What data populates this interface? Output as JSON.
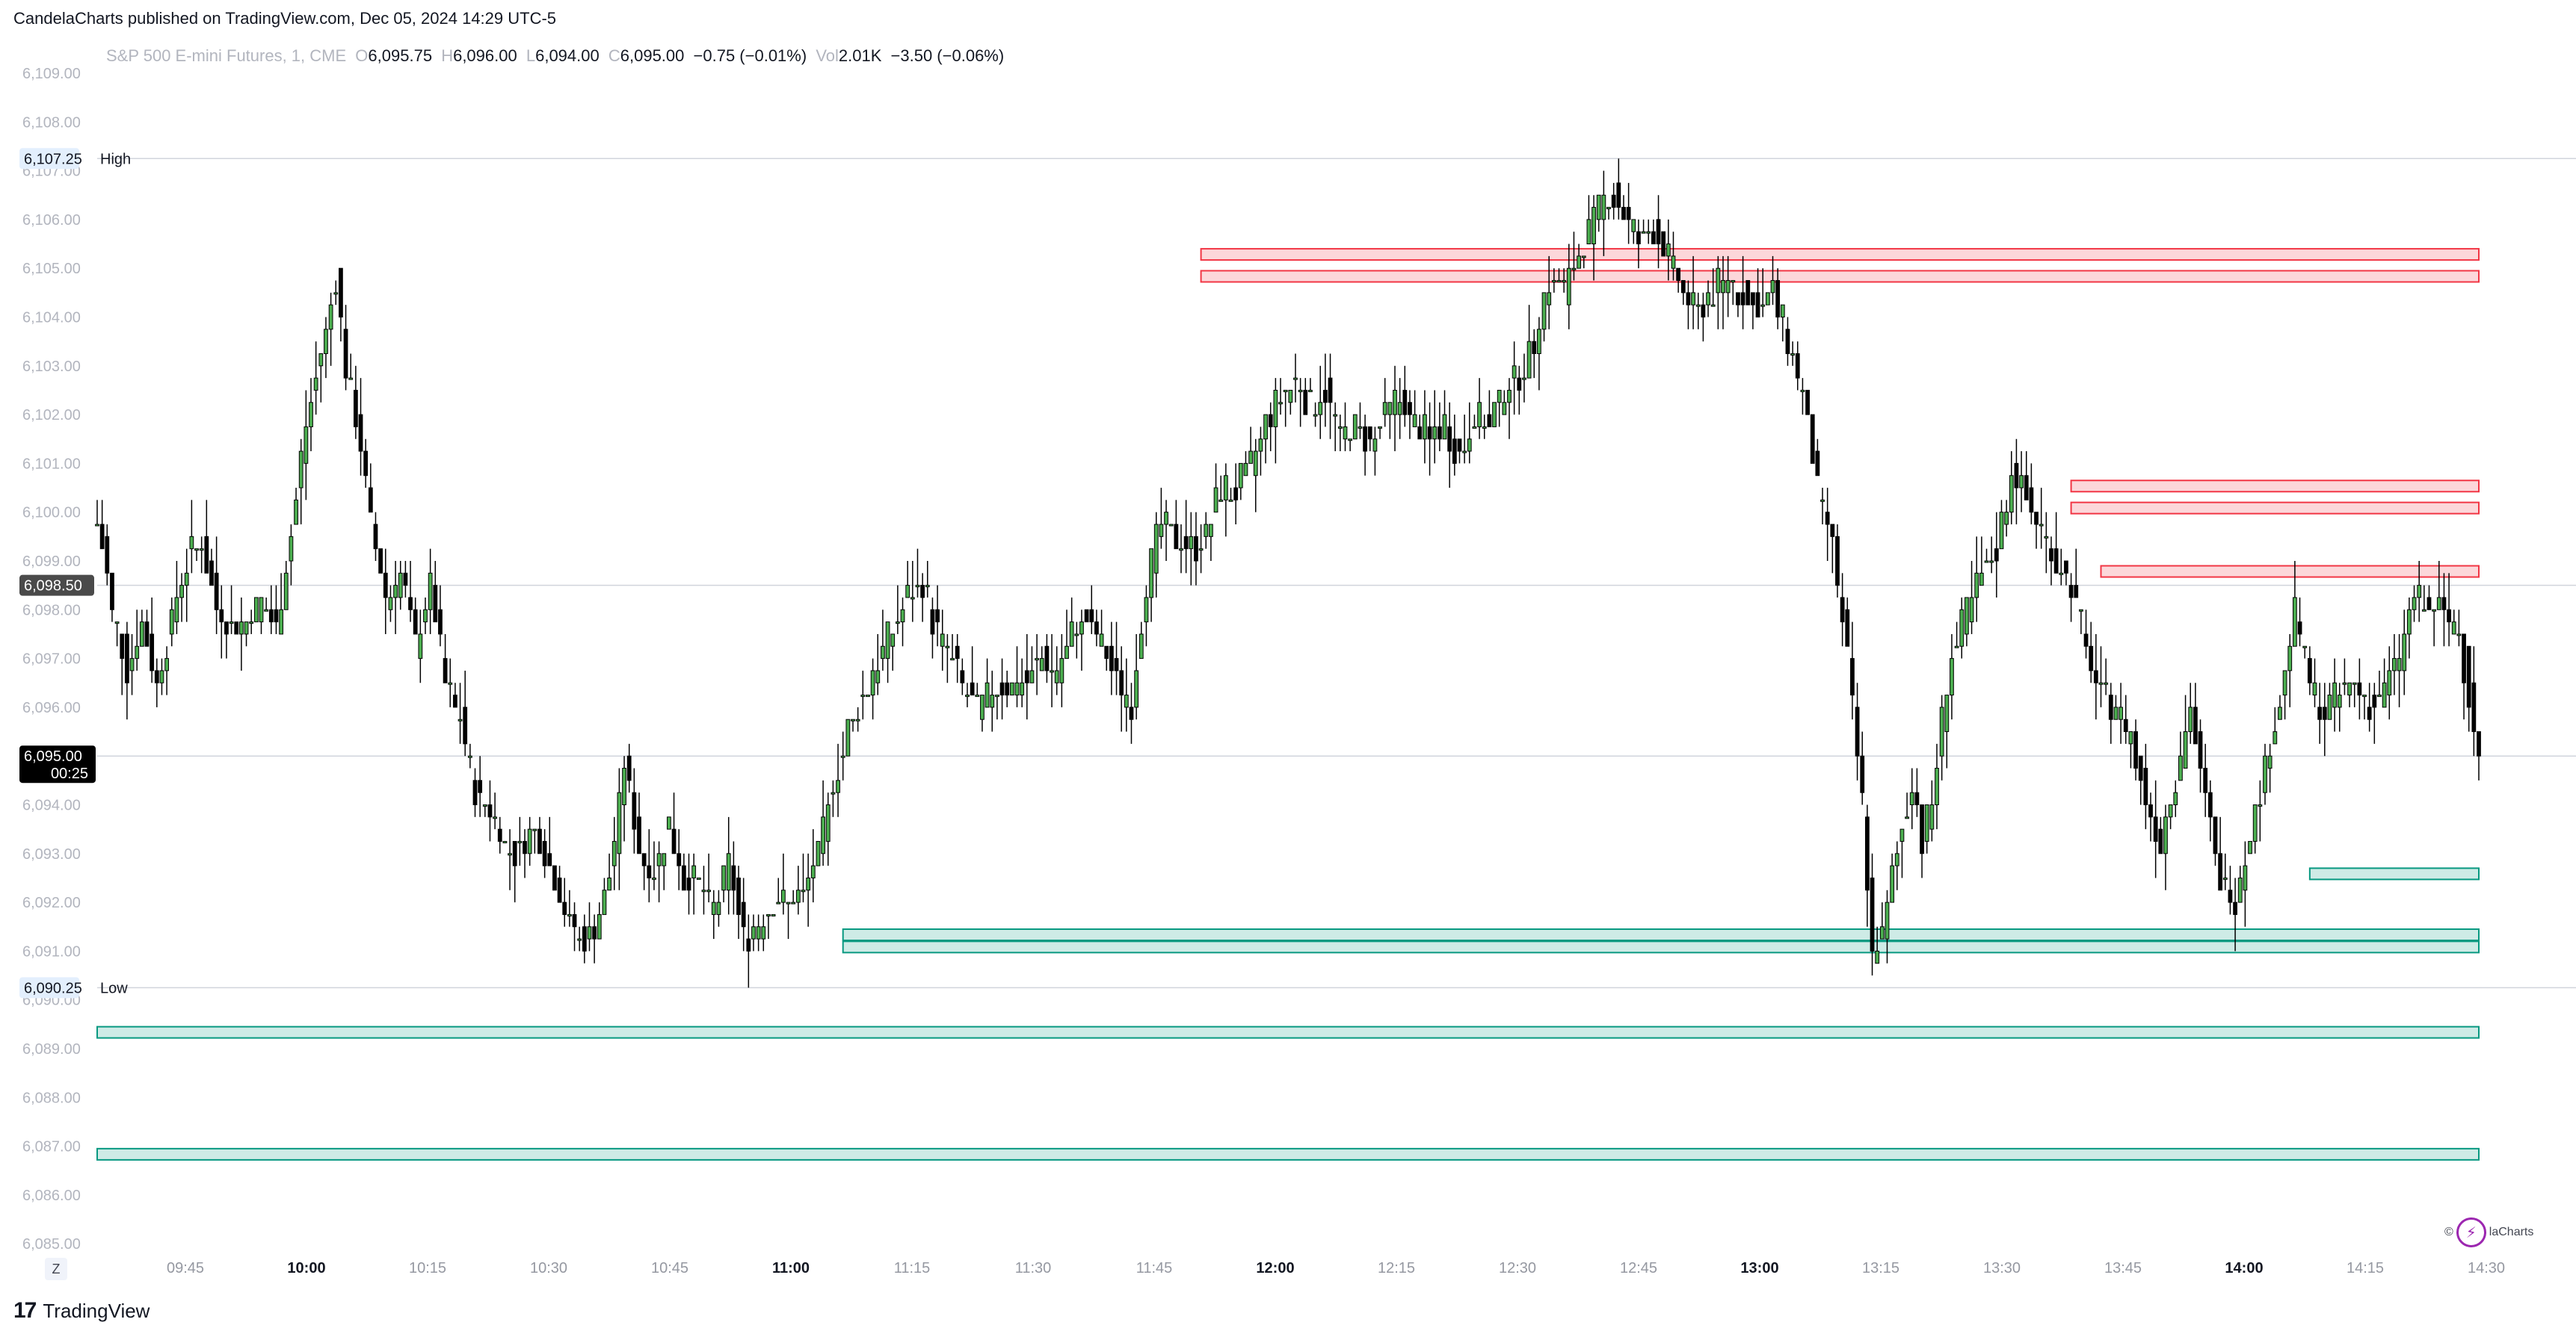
{
  "header": {
    "publish_line": "CandelaCharts published on TradingView.com, Dec 05, 2024 14:29 UTC-5"
  },
  "legend": {
    "symbol": "S&P 500 E-mini Futures, 1, CME",
    "o_label": "O",
    "o_value": "6,095.75",
    "h_label": "H",
    "h_value": "6,096.00",
    "l_label": "L",
    "l_value": "6,094.00",
    "c_label": "C",
    "c_value": "6,095.00",
    "change": "−0.75 (−0.01%)",
    "vol_label": "Vol",
    "vol_value": "2.01K",
    "vol_change": "−3.50 (−0.06%)"
  },
  "price_badges": {
    "high_value": "6,107.25",
    "high_label": "High",
    "low_value": "6,090.25",
    "low_label": "Low",
    "crosshair_value": "6,098.50",
    "last_value": "6,095.00",
    "last_countdown": "00:25"
  },
  "footer": {
    "logo_mark": "17",
    "logo_text": "TradingView",
    "z_button": "Z"
  },
  "watermark": {
    "copyright": "©",
    "text": "laCharts"
  },
  "colors": {
    "up": "#4caf50",
    "down": "#000000",
    "bear_zone": "#f23645",
    "bull_zone": "#089981"
  },
  "chart_data": {
    "type": "candlestick",
    "title": "S&P 500 E-mini Futures, 1, CME",
    "ylim": [
      6084.5,
      6109.5
    ],
    "y_ticks": [
      "6,085.00",
      "6,086.00",
      "6,087.00",
      "6,088.00",
      "6,089.00",
      "6,090.00",
      "6,091.00",
      "6,092.00",
      "6,093.00",
      "6,094.00",
      "6,095.00",
      "6,096.00",
      "6,097.00",
      "6,098.00",
      "6,099.00",
      "6,100.00",
      "6,101.00",
      "6,102.00",
      "6,103.00",
      "6,104.00",
      "6,105.00",
      "6,106.00",
      "6,107.00",
      "6,108.00",
      "6,109.00"
    ],
    "x_ticks": [
      {
        "label": "09:45",
        "bold": false
      },
      {
        "label": "10:00",
        "bold": true
      },
      {
        "label": "10:15",
        "bold": false
      },
      {
        "label": "10:30",
        "bold": false
      },
      {
        "label": "10:45",
        "bold": false
      },
      {
        "label": "11:00",
        "bold": true
      },
      {
        "label": "11:15",
        "bold": false
      },
      {
        "label": "11:30",
        "bold": false
      },
      {
        "label": "11:45",
        "bold": false
      },
      {
        "label": "12:00",
        "bold": true
      },
      {
        "label": "12:15",
        "bold": false
      },
      {
        "label": "12:30",
        "bold": false
      },
      {
        "label": "12:45",
        "bold": false
      },
      {
        "label": "13:00",
        "bold": true
      },
      {
        "label": "13:15",
        "bold": false
      },
      {
        "label": "13:30",
        "bold": false
      },
      {
        "label": "13:45",
        "bold": false
      },
      {
        "label": "14:00",
        "bold": true
      },
      {
        "label": "14:15",
        "bold": false
      },
      {
        "label": "14:30",
        "bold": false
      }
    ],
    "close_path": [
      [
        0,
        6099.8
      ],
      [
        3,
        6098.0
      ],
      [
        6,
        6096.8
      ],
      [
        9,
        6097.6
      ],
      [
        12,
        6096.5
      ],
      [
        15,
        6097.8
      ],
      [
        18,
        6099.0
      ],
      [
        21,
        6099.5
      ],
      [
        24,
        6098.0
      ],
      [
        27,
        6097.6
      ],
      [
        30,
        6097.8
      ],
      [
        33,
        6098.2
      ],
      [
        36,
        6097.5
      ],
      [
        39,
        6099.5
      ],
      [
        42,
        6101.8
      ],
      [
        45,
        6103.2
      ],
      [
        48,
        6104.8
      ],
      [
        50,
        6103.0
      ],
      [
        52,
        6102.0
      ],
      [
        55,
        6099.8
      ],
      [
        58,
        6098.2
      ],
      [
        61,
        6098.8
      ],
      [
        64,
        6097.2
      ],
      [
        67,
        6098.5
      ],
      [
        70,
        6096.5
      ],
      [
        73,
        6095.8
      ],
      [
        76,
        6094.2
      ],
      [
        79,
        6094.0
      ],
      [
        82,
        6093.2
      ],
      [
        85,
        6093.0
      ],
      [
        88,
        6093.5
      ],
      [
        91,
        6092.8
      ],
      [
        94,
        6091.8
      ],
      [
        97,
        6091.2
      ],
      [
        100,
        6091.5
      ],
      [
        103,
        6092.5
      ],
      [
        106,
        6094.8
      ],
      [
        109,
        6093.0
      ],
      [
        112,
        6092.6
      ],
      [
        115,
        6093.6
      ],
      [
        118,
        6092.5
      ],
      [
        121,
        6092.3
      ],
      [
        124,
        6091.8
      ],
      [
        127,
        6092.8
      ],
      [
        130,
        6091.3
      ],
      [
        133,
        6091.5
      ],
      [
        136,
        6092.0
      ],
      [
        139,
        6092.0
      ],
      [
        142,
        6092.2
      ],
      [
        145,
        6093.0
      ],
      [
        148,
        6094.4
      ],
      [
        151,
        6095.5
      ],
      [
        154,
        6096.2
      ],
      [
        157,
        6097.0
      ],
      [
        160,
        6097.6
      ],
      [
        163,
        6098.2
      ],
      [
        166,
        6098.5
      ],
      [
        169,
        6097.5
      ],
      [
        172,
        6097.0
      ],
      [
        175,
        6096.2
      ],
      [
        178,
        6096.0
      ],
      [
        181,
        6096.4
      ],
      [
        184,
        6096.5
      ],
      [
        187,
        6096.6
      ],
      [
        190,
        6097.0
      ],
      [
        193,
        6096.8
      ],
      [
        196,
        6097.5
      ],
      [
        199,
        6097.8
      ],
      [
        202,
        6097.2
      ],
      [
        205,
        6096.5
      ],
      [
        208,
        6096.0
      ],
      [
        211,
        6098.5
      ],
      [
        214,
        6099.8
      ],
      [
        217,
        6099.5
      ],
      [
        220,
        6099.2
      ],
      [
        223,
        6099.6
      ],
      [
        226,
        6100.5
      ],
      [
        229,
        6100.4
      ],
      [
        232,
        6101.0
      ],
      [
        235,
        6101.8
      ],
      [
        238,
        6102.3
      ],
      [
        241,
        6102.8
      ],
      [
        244,
        6102.2
      ],
      [
        247,
        6102.5
      ],
      [
        250,
        6101.5
      ],
      [
        253,
        6101.8
      ],
      [
        256,
        6101.3
      ],
      [
        259,
        6102.0
      ],
      [
        262,
        6102.3
      ],
      [
        265,
        6101.8
      ],
      [
        268,
        6101.5
      ],
      [
        271,
        6101.8
      ],
      [
        274,
        6101.2
      ],
      [
        277,
        6102.0
      ],
      [
        280,
        6101.8
      ],
      [
        283,
        6102.5
      ],
      [
        286,
        6102.8
      ],
      [
        289,
        6103.5
      ],
      [
        292,
        6104.8
      ],
      [
        295,
        6104.6
      ],
      [
        298,
        6105.2
      ],
      [
        301,
        6106.0
      ],
      [
        304,
        6106.6
      ],
      [
        307,
        6106.2
      ],
      [
        310,
        6105.5
      ],
      [
        313,
        6105.8
      ],
      [
        316,
        6105.2
      ],
      [
        319,
        6104.5
      ],
      [
        322,
        6104.2
      ],
      [
        325,
        6104.5
      ],
      [
        328,
        6104.8
      ],
      [
        331,
        6104.4
      ],
      [
        334,
        6104.2
      ],
      [
        337,
        6104.5
      ],
      [
        340,
        6103.5
      ],
      [
        343,
        6102.5
      ],
      [
        346,
        6100.5
      ],
      [
        349,
        6099.2
      ],
      [
        352,
        6097.0
      ],
      [
        355,
        6094.0
      ],
      [
        357,
        6091.0
      ],
      [
        359,
        6091.3
      ],
      [
        361,
        6092.6
      ],
      [
        363,
        6093.5
      ],
      [
        365,
        6094.5
      ],
      [
        367,
        6093.3
      ],
      [
        369,
        6094.0
      ],
      [
        371,
        6095.8
      ],
      [
        373,
        6097.0
      ],
      [
        376,
        6097.9
      ],
      [
        379,
        6098.7
      ],
      [
        382,
        6099.2
      ],
      [
        385,
        6100.8
      ],
      [
        388,
        6100.3
      ],
      [
        391,
        6099.6
      ],
      [
        394,
        6099.0
      ],
      [
        397,
        6098.5
      ],
      [
        400,
        6097.2
      ],
      [
        403,
        6096.3
      ],
      [
        406,
        6096.0
      ],
      [
        409,
        6095.4
      ],
      [
        412,
        6094.0
      ],
      [
        415,
        6093.2
      ],
      [
        418,
        6094.6
      ],
      [
        421,
        6096.0
      ],
      [
        424,
        6094.0
      ],
      [
        427,
        6092.4
      ],
      [
        430,
        6092.1
      ],
      [
        433,
        6093.4
      ],
      [
        436,
        6094.8
      ],
      [
        439,
        6096.1
      ],
      [
        442,
        6098.0
      ],
      [
        445,
        6096.5
      ],
      [
        448,
        6095.9
      ],
      [
        451,
        6096.2
      ],
      [
        454,
        6096.5
      ],
      [
        457,
        6096.0
      ],
      [
        460,
        6096.3
      ],
      [
        463,
        6097.0
      ],
      [
        466,
        6098.2
      ],
      [
        469,
        6098.0
      ],
      [
        472,
        6097.9
      ],
      [
        475,
        6097.5
      ],
      [
        477,
        6096.3
      ],
      [
        479,
        6095.0
      ]
    ],
    "resistance_zones": [
      {
        "from_x": 222,
        "to_x": 479,
        "top": 6105.4,
        "bottom": 6105.17
      },
      {
        "from_x": 222,
        "to_x": 479,
        "top": 6104.95,
        "bottom": 6104.72
      },
      {
        "from_x": 397,
        "to_x": 479,
        "top": 6100.65,
        "bottom": 6100.42
      },
      {
        "from_x": 397,
        "to_x": 479,
        "top": 6100.2,
        "bottom": 6099.97
      },
      {
        "from_x": 403,
        "to_x": 479,
        "top": 6098.9,
        "bottom": 6098.67
      }
    ],
    "support_zones": [
      {
        "from_x": 150,
        "to_x": 479,
        "top": 6091.45,
        "bottom": 6091.22
      },
      {
        "from_x": 150,
        "to_x": 479,
        "top": 6091.2,
        "bottom": 6090.97
      },
      {
        "from_x": 445,
        "to_x": 479,
        "top": 6092.7,
        "bottom": 6092.47
      },
      {
        "from_x": 0,
        "to_x": 479,
        "top": 6089.45,
        "bottom": 6089.22
      },
      {
        "from_x": 0,
        "to_x": 479,
        "top": 6086.95,
        "bottom": 6086.72
      }
    ],
    "reference_lines": {
      "high": 6107.25,
      "low": 6090.25,
      "crosshair": 6098.5,
      "last": 6095.0
    },
    "x_span": [
      0,
      479
    ],
    "grid": false,
    "legend_position": "top-left"
  }
}
